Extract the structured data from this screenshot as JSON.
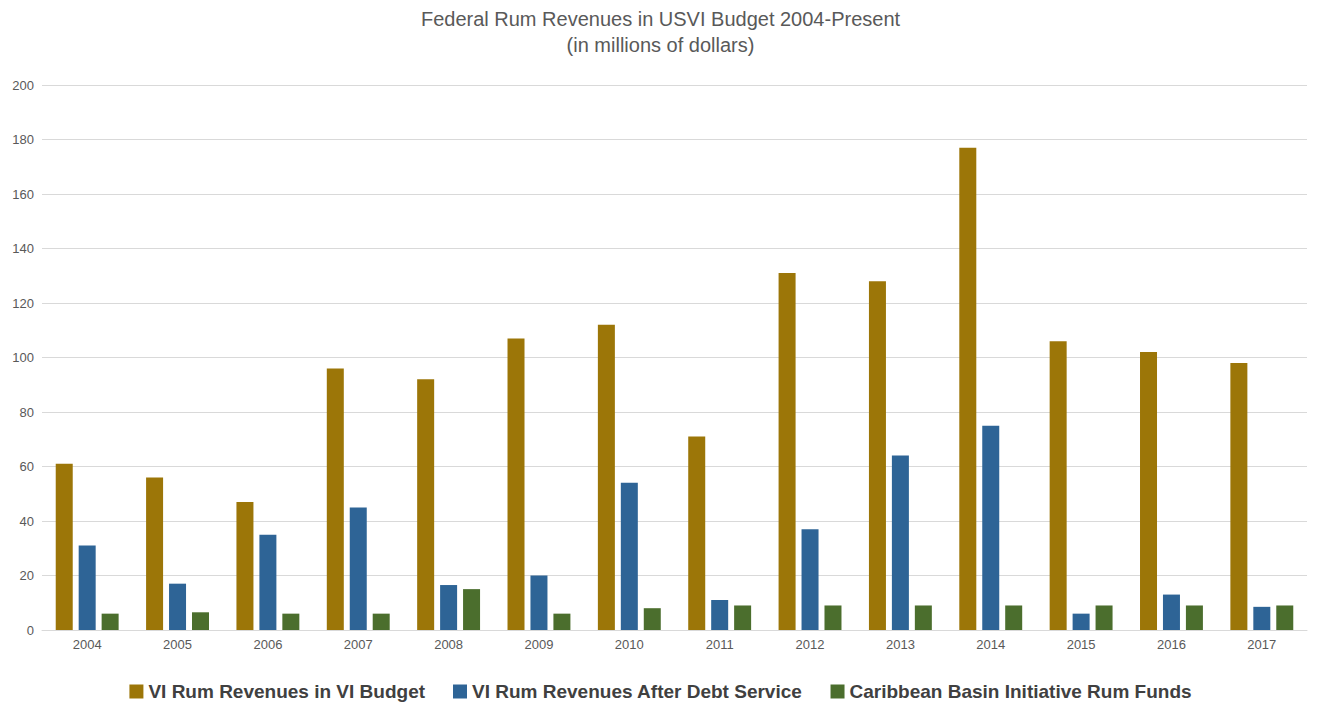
{
  "chart_data": {
    "type": "bar",
    "title": "Federal Rum Revenues in USVI Budget 2004-Present",
    "subtitle": "(in millions of dollars)",
    "categories": [
      "2004",
      "2005",
      "2006",
      "2007",
      "2008",
      "2009",
      "2010",
      "2011",
      "2012",
      "2013",
      "2014",
      "2015",
      "2016",
      "2017"
    ],
    "series": [
      {
        "name": "VI Rum Revenues in VI Budget",
        "color": "#9C7608",
        "values": [
          61,
          56,
          47,
          96,
          92,
          107,
          112,
          71,
          131,
          128,
          177,
          106,
          102,
          98
        ]
      },
      {
        "name": "VI Rum Revenues After Debt Service",
        "color": "#2E6496",
        "values": [
          31,
          17,
          35,
          45,
          16.5,
          20,
          54,
          11,
          37,
          64,
          75,
          6,
          13,
          8.5
        ]
      },
      {
        "name": "Caribbean Basin Initiative Rum Funds",
        "color": "#4B6E2D",
        "values": [
          6,
          6.5,
          6,
          6,
          15,
          6,
          8,
          9,
          9,
          9,
          9,
          9,
          9,
          9
        ]
      }
    ],
    "ylim": [
      0,
      200
    ],
    "yticks": [
      0,
      20,
      40,
      60,
      80,
      100,
      120,
      140,
      160,
      180,
      200
    ],
    "grid": true,
    "legend": "bottom"
  }
}
